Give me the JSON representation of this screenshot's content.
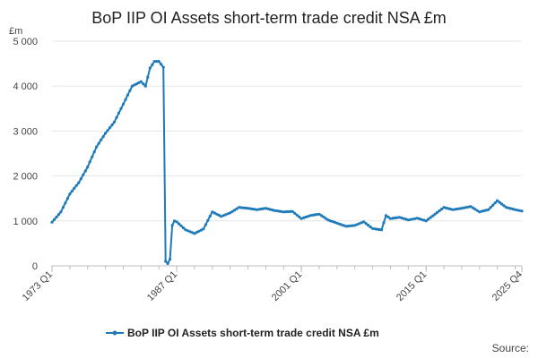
{
  "chart_data": {
    "type": "line",
    "title": "BoP IIP OI Assets short-term trade credit NSA £m",
    "unit_label": "£m",
    "xlabel": "",
    "ylabel": "",
    "ylim": [
      0,
      5000
    ],
    "y_ticks": [
      0,
      1000,
      2000,
      3000,
      4000,
      5000
    ],
    "y_tick_labels": [
      "0",
      "1 000",
      "2 000",
      "3 000",
      "4 000",
      "5 000"
    ],
    "x_ticks": [
      "1973 Q1",
      "1987 Q1",
      "2001 Q1",
      "2015 Q1",
      "2025 Q4"
    ],
    "x_range": [
      "1973 Q1",
      "2025 Q4"
    ],
    "grid": "horizontal",
    "legend": "bottom",
    "source_label": "Source:",
    "colors": {
      "series": "#1f7ab8",
      "grid": "#e6e6e6",
      "axis": "#bbbbbb"
    },
    "series": [
      {
        "name": "BoP IIP OI Assets short-term trade credit NSA £m",
        "x": [
          "1973 Q1",
          "1974 Q1",
          "1975 Q1",
          "1976 Q1",
          "1977 Q1",
          "1978 Q1",
          "1979 Q1",
          "1980 Q1",
          "1981 Q1",
          "1982 Q1",
          "1983 Q1",
          "1983 Q3",
          "1984 Q1",
          "1984 Q3",
          "1985 Q1",
          "1985 Q3",
          "1985 Q4",
          "1986 Q1",
          "1986 Q2",
          "1986 Q3",
          "1986 Q4",
          "1987 Q1",
          "1988 Q1",
          "1989 Q1",
          "1990 Q1",
          "1991 Q1",
          "1992 Q1",
          "1993 Q1",
          "1994 Q1",
          "1995 Q1",
          "1996 Q1",
          "1997 Q1",
          "1998 Q1",
          "1999 Q1",
          "2000 Q1",
          "2001 Q1",
          "2002 Q1",
          "2003 Q1",
          "2004 Q1",
          "2005 Q1",
          "2006 Q1",
          "2007 Q1",
          "2008 Q1",
          "2009 Q1",
          "2010 Q1",
          "2010 Q3",
          "2011 Q1",
          "2012 Q1",
          "2013 Q1",
          "2014 Q1",
          "2015 Q1",
          "2016 Q1",
          "2017 Q1",
          "2018 Q1",
          "2019 Q1",
          "2020 Q1",
          "2021 Q1",
          "2022 Q1",
          "2023 Q1",
          "2024 Q1",
          "2025 Q1",
          "2025 Q4"
        ],
        "values": [
          970,
          1200,
          1600,
          1850,
          2200,
          2650,
          2950,
          3200,
          3600,
          4000,
          4100,
          4000,
          4400,
          4550,
          4550,
          4420,
          100,
          50,
          150,
          900,
          1000,
          980,
          800,
          720,
          820,
          1200,
          1100,
          1180,
          1300,
          1280,
          1250,
          1280,
          1230,
          1200,
          1210,
          1050,
          1120,
          1150,
          1020,
          950,
          880,
          900,
          980,
          830,
          800,
          1120,
          1050,
          1080,
          1020,
          1060,
          1000,
          1150,
          1300,
          1250,
          1280,
          1320,
          1200,
          1250,
          1450,
          1300,
          1250,
          1220
        ]
      }
    ]
  }
}
